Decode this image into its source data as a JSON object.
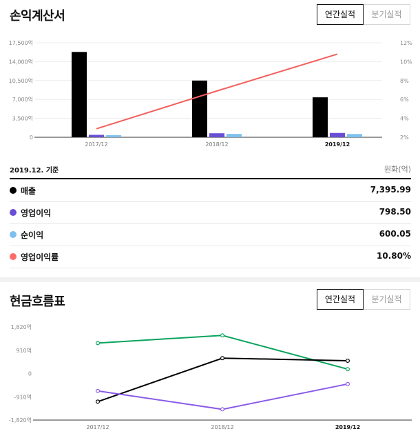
{
  "income": {
    "title": "손익계산서",
    "btn_annual": "연간실적",
    "btn_quarter": "분기실적",
    "base_date": "2019.12. 기준",
    "unit": "원화(억)",
    "rows": [
      {
        "label": "매출",
        "value": "7,395.99",
        "color": "#000000"
      },
      {
        "label": "영업이익",
        "value": "798.50",
        "color": "#6a4fd6"
      },
      {
        "label": "순이익",
        "value": "600.05",
        "color": "#7ec0ee"
      },
      {
        "label": "영업이익률",
        "value": "10.80%",
        "color": "#ff6b6b"
      }
    ]
  },
  "cashflow": {
    "title": "현금흐름표",
    "btn_annual": "연간실적",
    "btn_quarter": "분기실적"
  },
  "chart_data": [
    {
      "type": "bar",
      "categories": [
        "2017/12",
        "2018/12",
        "2019/12"
      ],
      "series": [
        {
          "name": "매출",
          "values": [
            15800,
            10500,
            7396
          ],
          "color": "#000000",
          "axis": "left"
        },
        {
          "name": "영업이익",
          "values": [
            450,
            740,
            799
          ],
          "color": "#6a4fd6",
          "axis": "left"
        },
        {
          "name": "순이익",
          "values": [
            380,
            620,
            600
          ],
          "color": "#7ec0ee",
          "axis": "left"
        },
        {
          "name": "영업이익률",
          "values": [
            2.9,
            6.9,
            10.8
          ],
          "color": "#f25f5c",
          "type": "line",
          "axis": "right"
        }
      ],
      "y_ticks": [
        "0",
        "3,500억",
        "7,000억",
        "10,500억",
        "14,000억",
        "17,500억"
      ],
      "ylim": [
        0,
        17500
      ],
      "y2_ticks": [
        "2%",
        "4%",
        "6%",
        "8%",
        "10%",
        "12%"
      ],
      "y2lim": [
        2,
        12
      ]
    },
    {
      "type": "line",
      "categories": [
        "2017/12",
        "2018/12",
        "2019/12"
      ],
      "series": [
        {
          "values": [
            1190,
            1490,
            170
          ],
          "color": "#0aa35c"
        },
        {
          "values": [
            -1100,
            600,
            500
          ],
          "color": "#000000"
        },
        {
          "values": [
            -680,
            -1400,
            -410
          ],
          "color": "#8a5be8"
        }
      ],
      "y_ticks": [
        "-1,820억",
        "-910억",
        "0",
        "910억",
        "1,820억"
      ],
      "ylim": [
        -1820,
        1820
      ]
    }
  ]
}
